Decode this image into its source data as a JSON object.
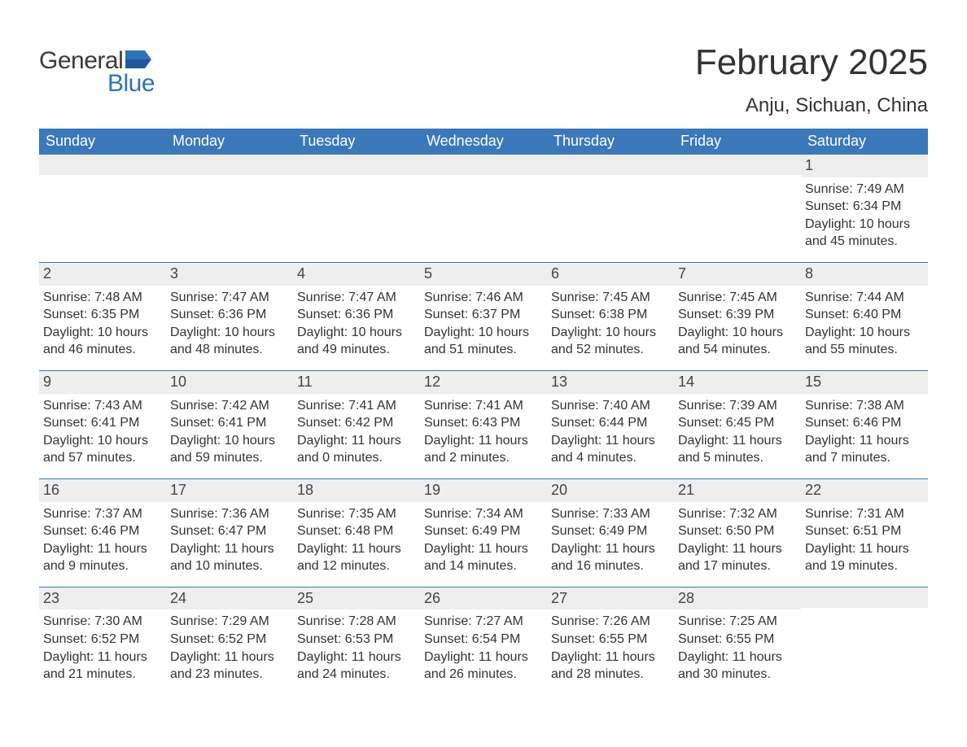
{
  "brand": {
    "word1": "General",
    "word2": "Blue",
    "logo_color": "#2f72b8",
    "text_color": "#3a3a3a"
  },
  "title": "February 2025",
  "location": "Anju, Sichuan, China",
  "colors": {
    "header_bg": "#3a78b9",
    "header_text": "#ffffff",
    "row_divider": "#3a78b9",
    "daynum_bg": "#eeeeee",
    "body_text": "#333333",
    "page_bg": "#ffffff"
  },
  "typography": {
    "title_fontsize": 44,
    "location_fontsize": 24,
    "weekday_fontsize": 18,
    "daynum_fontsize": 18,
    "body_fontsize": 16
  },
  "weekdays": [
    "Sunday",
    "Monday",
    "Tuesday",
    "Wednesday",
    "Thursday",
    "Friday",
    "Saturday"
  ],
  "weeks": [
    [
      {
        "n": "",
        "sunrise": "",
        "sunset": "",
        "daylight": ""
      },
      {
        "n": "",
        "sunrise": "",
        "sunset": "",
        "daylight": ""
      },
      {
        "n": "",
        "sunrise": "",
        "sunset": "",
        "daylight": ""
      },
      {
        "n": "",
        "sunrise": "",
        "sunset": "",
        "daylight": ""
      },
      {
        "n": "",
        "sunrise": "",
        "sunset": "",
        "daylight": ""
      },
      {
        "n": "",
        "sunrise": "",
        "sunset": "",
        "daylight": ""
      },
      {
        "n": "1",
        "sunrise": "Sunrise: 7:49 AM",
        "sunset": "Sunset: 6:34 PM",
        "daylight": "Daylight: 10 hours and 45 minutes."
      }
    ],
    [
      {
        "n": "2",
        "sunrise": "Sunrise: 7:48 AM",
        "sunset": "Sunset: 6:35 PM",
        "daylight": "Daylight: 10 hours and 46 minutes."
      },
      {
        "n": "3",
        "sunrise": "Sunrise: 7:47 AM",
        "sunset": "Sunset: 6:36 PM",
        "daylight": "Daylight: 10 hours and 48 minutes."
      },
      {
        "n": "4",
        "sunrise": "Sunrise: 7:47 AM",
        "sunset": "Sunset: 6:36 PM",
        "daylight": "Daylight: 10 hours and 49 minutes."
      },
      {
        "n": "5",
        "sunrise": "Sunrise: 7:46 AM",
        "sunset": "Sunset: 6:37 PM",
        "daylight": "Daylight: 10 hours and 51 minutes."
      },
      {
        "n": "6",
        "sunrise": "Sunrise: 7:45 AM",
        "sunset": "Sunset: 6:38 PM",
        "daylight": "Daylight: 10 hours and 52 minutes."
      },
      {
        "n": "7",
        "sunrise": "Sunrise: 7:45 AM",
        "sunset": "Sunset: 6:39 PM",
        "daylight": "Daylight: 10 hours and 54 minutes."
      },
      {
        "n": "8",
        "sunrise": "Sunrise: 7:44 AM",
        "sunset": "Sunset: 6:40 PM",
        "daylight": "Daylight: 10 hours and 55 minutes."
      }
    ],
    [
      {
        "n": "9",
        "sunrise": "Sunrise: 7:43 AM",
        "sunset": "Sunset: 6:41 PM",
        "daylight": "Daylight: 10 hours and 57 minutes."
      },
      {
        "n": "10",
        "sunrise": "Sunrise: 7:42 AM",
        "sunset": "Sunset: 6:41 PM",
        "daylight": "Daylight: 10 hours and 59 minutes."
      },
      {
        "n": "11",
        "sunrise": "Sunrise: 7:41 AM",
        "sunset": "Sunset: 6:42 PM",
        "daylight": "Daylight: 11 hours and 0 minutes."
      },
      {
        "n": "12",
        "sunrise": "Sunrise: 7:41 AM",
        "sunset": "Sunset: 6:43 PM",
        "daylight": "Daylight: 11 hours and 2 minutes."
      },
      {
        "n": "13",
        "sunrise": "Sunrise: 7:40 AM",
        "sunset": "Sunset: 6:44 PM",
        "daylight": "Daylight: 11 hours and 4 minutes."
      },
      {
        "n": "14",
        "sunrise": "Sunrise: 7:39 AM",
        "sunset": "Sunset: 6:45 PM",
        "daylight": "Daylight: 11 hours and 5 minutes."
      },
      {
        "n": "15",
        "sunrise": "Sunrise: 7:38 AM",
        "sunset": "Sunset: 6:46 PM",
        "daylight": "Daylight: 11 hours and 7 minutes."
      }
    ],
    [
      {
        "n": "16",
        "sunrise": "Sunrise: 7:37 AM",
        "sunset": "Sunset: 6:46 PM",
        "daylight": "Daylight: 11 hours and 9 minutes."
      },
      {
        "n": "17",
        "sunrise": "Sunrise: 7:36 AM",
        "sunset": "Sunset: 6:47 PM",
        "daylight": "Daylight: 11 hours and 10 minutes."
      },
      {
        "n": "18",
        "sunrise": "Sunrise: 7:35 AM",
        "sunset": "Sunset: 6:48 PM",
        "daylight": "Daylight: 11 hours and 12 minutes."
      },
      {
        "n": "19",
        "sunrise": "Sunrise: 7:34 AM",
        "sunset": "Sunset: 6:49 PM",
        "daylight": "Daylight: 11 hours and 14 minutes."
      },
      {
        "n": "20",
        "sunrise": "Sunrise: 7:33 AM",
        "sunset": "Sunset: 6:49 PM",
        "daylight": "Daylight: 11 hours and 16 minutes."
      },
      {
        "n": "21",
        "sunrise": "Sunrise: 7:32 AM",
        "sunset": "Sunset: 6:50 PM",
        "daylight": "Daylight: 11 hours and 17 minutes."
      },
      {
        "n": "22",
        "sunrise": "Sunrise: 7:31 AM",
        "sunset": "Sunset: 6:51 PM",
        "daylight": "Daylight: 11 hours and 19 minutes."
      }
    ],
    [
      {
        "n": "23",
        "sunrise": "Sunrise: 7:30 AM",
        "sunset": "Sunset: 6:52 PM",
        "daylight": "Daylight: 11 hours and 21 minutes."
      },
      {
        "n": "24",
        "sunrise": "Sunrise: 7:29 AM",
        "sunset": "Sunset: 6:52 PM",
        "daylight": "Daylight: 11 hours and 23 minutes."
      },
      {
        "n": "25",
        "sunrise": "Sunrise: 7:28 AM",
        "sunset": "Sunset: 6:53 PM",
        "daylight": "Daylight: 11 hours and 24 minutes."
      },
      {
        "n": "26",
        "sunrise": "Sunrise: 7:27 AM",
        "sunset": "Sunset: 6:54 PM",
        "daylight": "Daylight: 11 hours and 26 minutes."
      },
      {
        "n": "27",
        "sunrise": "Sunrise: 7:26 AM",
        "sunset": "Sunset: 6:55 PM",
        "daylight": "Daylight: 11 hours and 28 minutes."
      },
      {
        "n": "28",
        "sunrise": "Sunrise: 7:25 AM",
        "sunset": "Sunset: 6:55 PM",
        "daylight": "Daylight: 11 hours and 30 minutes."
      },
      {
        "n": "",
        "sunrise": "",
        "sunset": "",
        "daylight": ""
      }
    ]
  ]
}
